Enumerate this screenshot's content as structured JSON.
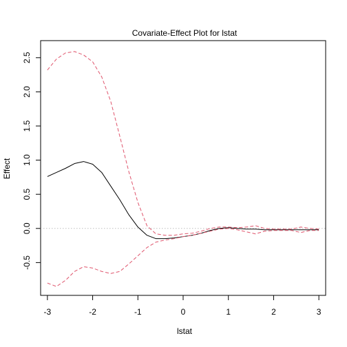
{
  "chart_data": {
    "type": "line",
    "title": "Covariate-Effect Plot for lstat",
    "xlabel": "lstat",
    "ylabel": "Effect",
    "xlim": [
      -3.15,
      3.15
    ],
    "ylim": [
      -0.98,
      2.75
    ],
    "x_ticks": [
      -3,
      -2,
      -1,
      0,
      1,
      2,
      3
    ],
    "y_ticks": [
      -0.5,
      0.0,
      0.5,
      1.0,
      1.5,
      2.0,
      2.5
    ],
    "x_tick_labels": [
      "-3",
      "-2",
      "-1",
      "0",
      "1",
      "2",
      "3"
    ],
    "y_tick_labels": [
      "-0.5",
      "0.0",
      "0.5",
      "1.0",
      "1.5",
      "2.0",
      "2.5"
    ],
    "reference_line": {
      "y": 0,
      "color": "#bebebe",
      "style": "dotted"
    },
    "series": [
      {
        "role": "estimate",
        "color": "#000000",
        "style": "solid",
        "x": [
          -3.0,
          -2.8,
          -2.6,
          -2.4,
          -2.2,
          -2.0,
          -1.8,
          -1.6,
          -1.4,
          -1.2,
          -1.0,
          -0.8,
          -0.6,
          -0.4,
          -0.2,
          0.0,
          0.2,
          0.4,
          0.6,
          0.8,
          1.0,
          1.2,
          1.4,
          1.6,
          1.8,
          2.0,
          2.2,
          2.4,
          2.6,
          2.8,
          3.0
        ],
        "y": [
          0.76,
          0.82,
          0.88,
          0.95,
          0.98,
          0.94,
          0.82,
          0.62,
          0.42,
          0.2,
          0.02,
          -0.1,
          -0.15,
          -0.15,
          -0.14,
          -0.12,
          -0.1,
          -0.07,
          -0.03,
          0.0,
          0.01,
          0.0,
          -0.01,
          -0.01,
          -0.02,
          -0.02,
          -0.02,
          -0.02,
          -0.02,
          -0.02,
          -0.02
        ]
      },
      {
        "role": "upper-band",
        "color": "#df536b",
        "style": "dashed",
        "x": [
          -3.0,
          -2.8,
          -2.6,
          -2.4,
          -2.2,
          -2.0,
          -1.8,
          -1.6,
          -1.4,
          -1.2,
          -1.0,
          -0.8,
          -0.6,
          -0.4,
          -0.2,
          0.0,
          0.2,
          0.4,
          0.6,
          0.8,
          1.0,
          1.2,
          1.4,
          1.6,
          1.8,
          2.0,
          2.2,
          2.4,
          2.6,
          2.8,
          3.0
        ],
        "y": [
          2.32,
          2.48,
          2.57,
          2.59,
          2.54,
          2.44,
          2.22,
          1.86,
          1.35,
          0.83,
          0.38,
          0.04,
          -0.08,
          -0.1,
          -0.1,
          -0.08,
          -0.07,
          -0.04,
          0.0,
          0.02,
          0.02,
          0.01,
          0.02,
          0.04,
          0.0,
          -0.01,
          -0.01,
          -0.01,
          0.02,
          0.0,
          -0.01
        ]
      },
      {
        "role": "lower-band",
        "color": "#df536b",
        "style": "dashed",
        "x": [
          -3.0,
          -2.8,
          -2.6,
          -2.4,
          -2.2,
          -2.0,
          -1.8,
          -1.6,
          -1.4,
          -1.2,
          -1.0,
          -0.8,
          -0.6,
          -0.4,
          -0.2,
          0.0,
          0.2,
          0.4,
          0.6,
          0.8,
          1.0,
          1.2,
          1.4,
          1.6,
          1.8,
          2.0,
          2.2,
          2.4,
          2.6,
          2.8,
          3.0
        ],
        "y": [
          -0.8,
          -0.85,
          -0.76,
          -0.63,
          -0.56,
          -0.58,
          -0.63,
          -0.66,
          -0.63,
          -0.52,
          -0.4,
          -0.28,
          -0.2,
          -0.17,
          -0.15,
          -0.12,
          -0.1,
          -0.07,
          -0.04,
          -0.01,
          0.0,
          -0.02,
          -0.05,
          -0.08,
          -0.04,
          -0.03,
          -0.03,
          -0.03,
          -0.06,
          -0.03,
          -0.03
        ]
      }
    ]
  }
}
